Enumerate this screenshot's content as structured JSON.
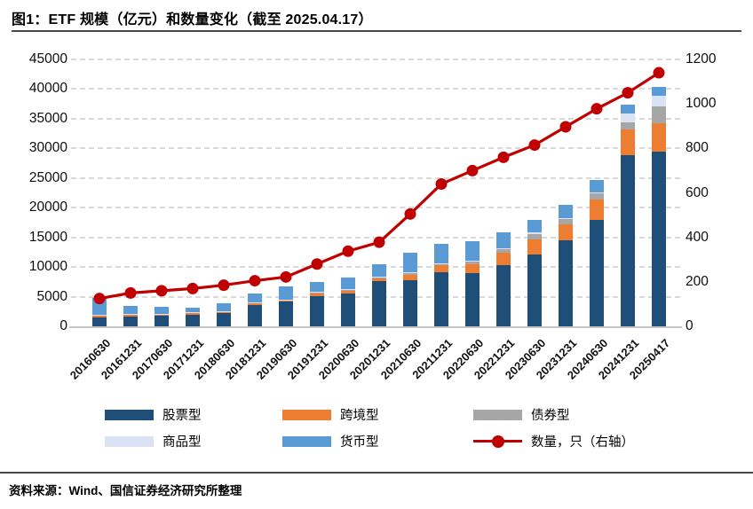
{
  "header": {
    "title": "图1：ETF 规模（亿元）和数量变化（截至 2025.04.17）"
  },
  "footer": {
    "source": "资料来源：Wind、国信证券经济研究所整理"
  },
  "colors": {
    "stock": "#1F4E79",
    "cross_border": "#ED7D31",
    "bond": "#A6A6A6",
    "commodity": "#DAE3F3",
    "money": "#5B9BD5",
    "count_line": "#C00000",
    "grid": "#D9D9D9"
  },
  "chart_data": {
    "type": "bar",
    "stacked": true,
    "title": "ETF 规模（亿元）和数量变化（截至 2025.04.17）",
    "grid": "horizontal-dashed",
    "legend_position": "bottom",
    "categories": [
      "20160630",
      "20161231",
      "20170630",
      "20171231",
      "20180630",
      "20181231",
      "20190630",
      "20191231",
      "20200630",
      "20201231",
      "20210630",
      "20211231",
      "20220630",
      "20221231",
      "20230630",
      "20231231",
      "20240630",
      "20241231",
      "20250417"
    ],
    "series": [
      {
        "name": "股票型",
        "color": "#1F4E79",
        "values": [
          1500,
          1690,
          1790,
          1990,
          2200,
          3550,
          4130,
          5130,
          5580,
          7560,
          7770,
          9170,
          8920,
          10270,
          12150,
          14550,
          17890,
          28850,
          29450
        ]
      },
      {
        "name": "跨境型",
        "color": "#ED7D31",
        "values": [
          300,
          250,
          260,
          250,
          300,
          340,
          250,
          350,
          400,
          510,
          840,
          1100,
          1500,
          2130,
          2500,
          2700,
          3490,
          4390,
          4780
        ]
      },
      {
        "name": "债券型",
        "color": "#A6A6A6",
        "values": [
          0,
          0,
          0,
          0,
          0,
          0,
          50,
          150,
          100,
          100,
          350,
          300,
          500,
          600,
          900,
          900,
          1000,
          1100,
          2840
        ]
      },
      {
        "name": "商品型",
        "color": "#DAE3F3",
        "values": [
          100,
          100,
          100,
          100,
          100,
          100,
          100,
          150,
          150,
          150,
          100,
          100,
          100,
          150,
          250,
          150,
          250,
          1590,
          1750
        ]
      },
      {
        "name": "货币型",
        "color": "#5B9BD5",
        "values": [
          2900,
          1400,
          1140,
          850,
          1330,
          1590,
          2200,
          1690,
          1990,
          2110,
          3390,
          3190,
          3380,
          2750,
          2100,
          2230,
          1990,
          1490,
          1590
        ]
      }
    ],
    "line_series": {
      "name": "数量，只（右轴）",
      "color": "#C00000",
      "axis": "right",
      "values": [
        125,
        150,
        160,
        170,
        185,
        205,
        222,
        280,
        338,
        378,
        505,
        640,
        700,
        760,
        815,
        897,
        978,
        1050,
        1140
      ]
    },
    "left_axis": {
      "min": 0,
      "max": 45000,
      "step": 5000,
      "ticks": [
        "0",
        "5000",
        "10000",
        "15000",
        "20000",
        "25000",
        "30000",
        "35000",
        "40000",
        "45000"
      ]
    },
    "right_axis": {
      "min": 0,
      "max": 1200,
      "step": 200,
      "ticks": [
        "0",
        "200",
        "400",
        "600",
        "800",
        "1000",
        "1200"
      ]
    }
  },
  "legend": {
    "items": [
      "股票型",
      "跨境型",
      "债券型",
      "商品型",
      "货币型",
      "数量，只（右轴）"
    ]
  }
}
